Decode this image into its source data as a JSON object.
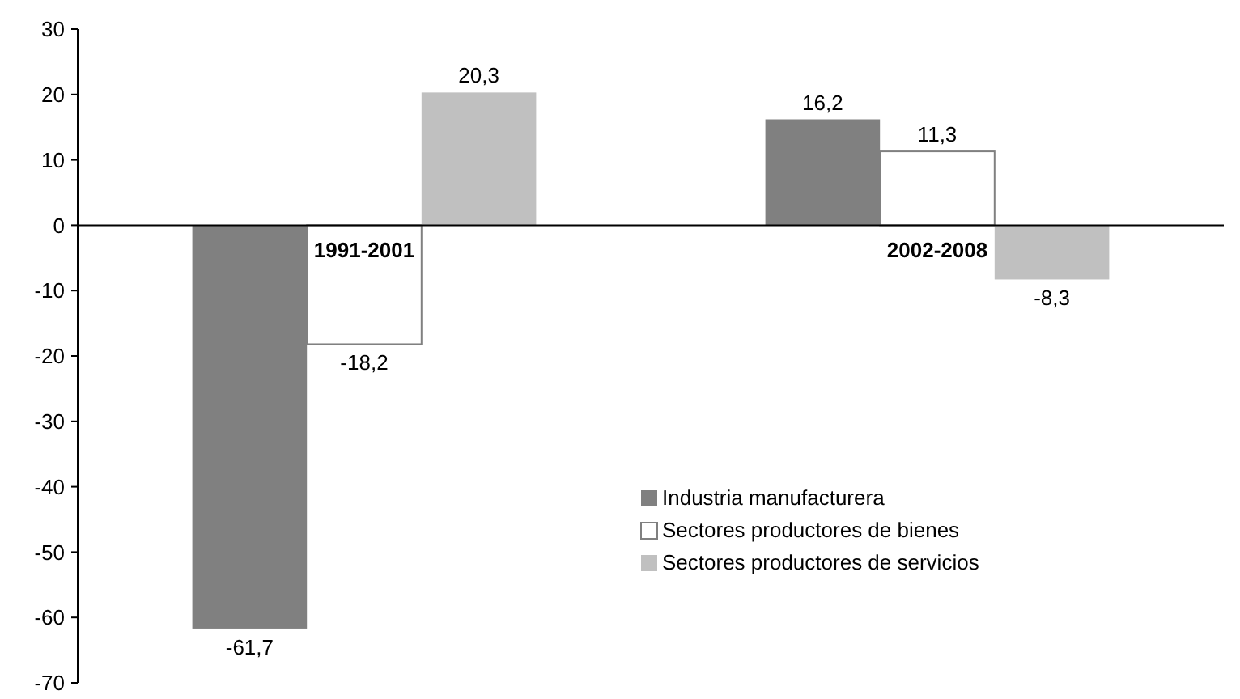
{
  "chart_data": {
    "type": "bar",
    "categories": [
      "1991-2001",
      "2002-2008"
    ],
    "series": [
      {
        "name": "Industria manufacturera",
        "color": "#808080",
        "values": [
          -61.7,
          16.2
        ],
        "value_labels": [
          "-61,7",
          "16,2"
        ]
      },
      {
        "name": "Sectores productores de bienes",
        "color": "#ffffff",
        "values": [
          -18.2,
          11.3
        ],
        "value_labels": [
          "-18,2",
          "11,3"
        ]
      },
      {
        "name": "Sectores productores de servicios",
        "color": "#c0c0c0",
        "values": [
          20.3,
          -8.3
        ],
        "value_labels": [
          "20,3",
          "-8,3"
        ]
      }
    ],
    "ylim": [
      -70,
      30
    ],
    "yticks": [
      -70,
      -60,
      -50,
      -40,
      -30,
      -20,
      -10,
      0,
      10,
      20,
      30
    ],
    "grid": false,
    "legend": "bottom right"
  }
}
